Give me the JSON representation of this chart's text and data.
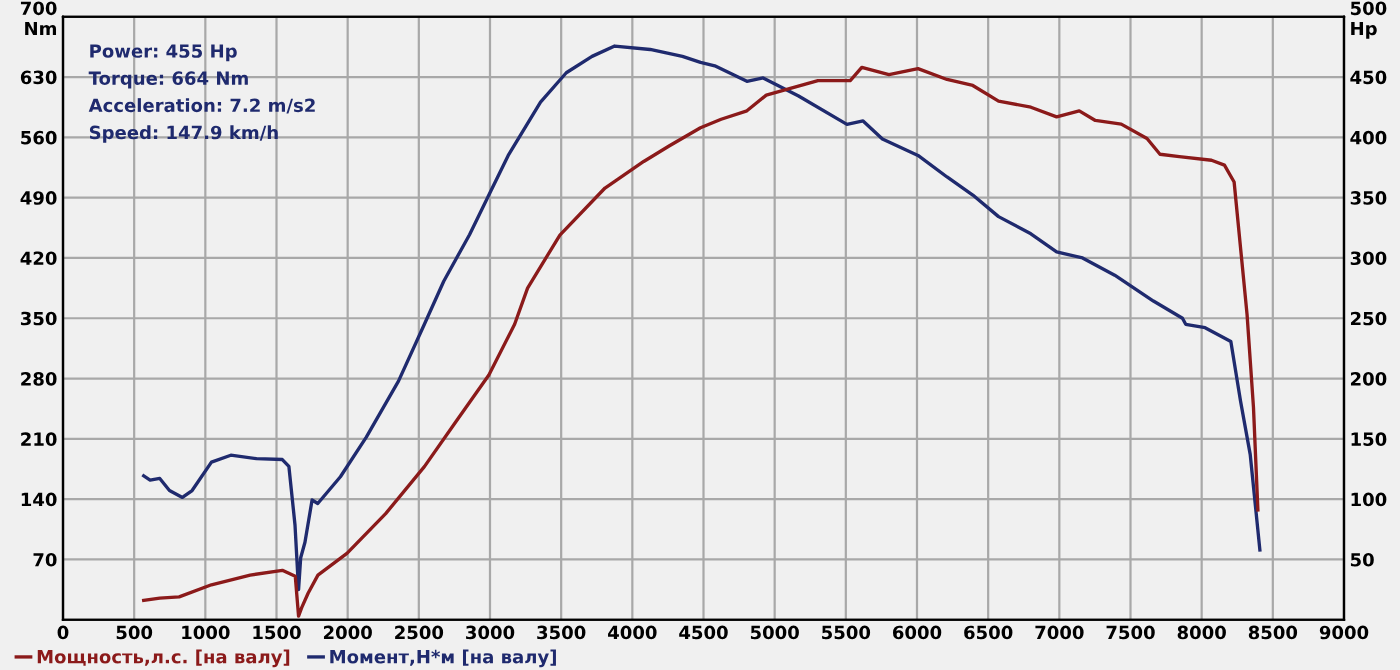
{
  "chart_data": {
    "type": "line",
    "xlim": [
      0,
      9000
    ],
    "xticks": [
      0,
      500,
      1000,
      1500,
      2000,
      2500,
      3000,
      3500,
      4000,
      4500,
      5000,
      5500,
      6000,
      6500,
      7000,
      7500,
      8000,
      8500,
      9000
    ],
    "ylim": [
      0,
      700
    ],
    "yticks": [
      70,
      140,
      210,
      280,
      350,
      420,
      490,
      560,
      630,
      {
        "value": 700,
        "label": "700\nNm"
      }
    ],
    "y2lim": [
      0,
      500
    ],
    "y2ticks": [
      50,
      100,
      150,
      200,
      250,
      300,
      350,
      400,
      450,
      {
        "value": 500,
        "label": "500\nHp"
      }
    ],
    "grid": true,
    "legend": "bottom left",
    "marker": "none",
    "line_style": "solid",
    "annotations": [
      "Power: 455 Hp",
      "Torque: 664 Nm",
      "Acceleration: 7.2 m/s2",
      "Speed: 147.9 km/h"
    ],
    "series": [
      {
        "name": "Мощность,л.с. [на валу]",
        "color": "#8b1a1a",
        "axis": "y2",
        "x": [
          567,
          680,
          816,
          1043,
          1315,
          1541,
          1632,
          1655,
          1677,
          1722,
          1791,
          1995,
          2267,
          2539,
          2765,
          2992,
          3173,
          3264,
          3491,
          3808,
          4080,
          4261,
          4479,
          4624,
          4805,
          4941,
          5304,
          5531,
          5612,
          5803,
          6007,
          6211,
          6392,
          6573,
          6800,
          6981,
          7140,
          7253,
          7435,
          7616,
          7707,
          7843,
          8069,
          8160,
          8228,
          8319,
          8364,
          8395
        ],
        "values": [
          16,
          18,
          19,
          29,
          37,
          41,
          36,
          3,
          10,
          22,
          37,
          55,
          88,
          127,
          165,
          203,
          245,
          275,
          319,
          358,
          380,
          393,
          408,
          415,
          422,
          435,
          447,
          447,
          458,
          452,
          457,
          448,
          443,
          430,
          425,
          417,
          422,
          414,
          411,
          399,
          386,
          384,
          381,
          377,
          363,
          253,
          176,
          91
        ]
      },
      {
        "name": "Момент,Н*м [на валу]",
        "color": "#1f2a6e",
        "x": [
          567,
          612,
          680,
          748,
          839,
          907,
          1043,
          1179,
          1360,
          1541,
          1587,
          1630,
          1655,
          1670,
          1700,
          1750,
          1790,
          1949,
          2131,
          2357,
          2539,
          2675,
          2856,
          2992,
          3128,
          3355,
          3536,
          3717,
          3876,
          4125,
          4352,
          4479,
          4579,
          4805,
          4919,
          5168,
          5508,
          5621,
          5757,
          6007,
          6211,
          6392,
          6573,
          6800,
          6981,
          7163,
          7389,
          7661,
          7865,
          7888,
          8024,
          8205,
          8273,
          8341,
          8409
        ],
        "values": [
          167,
          162,
          164,
          150,
          142,
          150,
          183,
          191,
          187,
          186,
          178,
          110,
          35,
          72,
          90,
          139,
          135,
          166,
          212,
          277,
          343,
          393,
          447,
          493,
          539,
          601,
          635,
          654,
          666,
          662,
          654,
          647,
          643,
          625,
          629,
          608,
          575,
          579,
          558,
          539,
          514,
          493,
          468,
          448,
          427,
          420,
          400,
          370,
          350,
          343,
          339,
          323,
          254,
          192,
          81
        ]
      }
    ]
  }
}
